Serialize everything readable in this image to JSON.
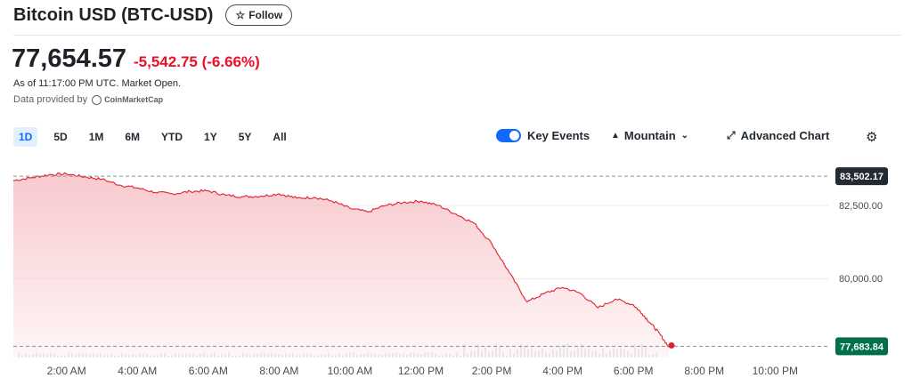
{
  "header": {
    "title": "Bitcoin USD (BTC-USD)",
    "follow_label": "Follow",
    "follow_icon": "star-icon"
  },
  "quote": {
    "price": "77,654.57",
    "change": "-5,542.75",
    "change_pct": "(-6.66%)",
    "as_of": "As of 11:17:00 PM UTC. Market Open.",
    "provider_prefix": "Data provided by",
    "provider_name": "CoinMarketCap"
  },
  "ranges": [
    "1D",
    "5D",
    "1M",
    "6M",
    "YTD",
    "1Y",
    "5Y",
    "All"
  ],
  "active_range": "1D",
  "controls": {
    "key_events_label": "Key Events",
    "key_events_on": true,
    "chart_type_label": "Mountain",
    "advanced_chart_label": "Advanced Chart",
    "settings_icon": "gear-icon"
  },
  "colors": {
    "line": "#e0202e",
    "fill": "#f8c6cb",
    "accent": "#0f69ff",
    "negative": "#eb0f29",
    "prev_close_badge": "#232a31",
    "current_badge": "#00704a"
  },
  "chart_data": {
    "type": "area",
    "xlabel": "",
    "ylabel": "",
    "x_ticks": [
      "2:00 AM",
      "4:00 AM",
      "6:00 AM",
      "8:00 AM",
      "10:00 AM",
      "12:00 PM",
      "2:00 PM",
      "4:00 PM",
      "6:00 PM",
      "8:00 PM",
      "10:00 PM"
    ],
    "x_tick_hours": [
      2,
      4,
      6,
      8,
      10,
      12,
      14,
      16,
      18,
      20,
      22
    ],
    "x_range_hours": [
      0.5,
      23.5
    ],
    "y_ticks": [
      "82,500.00",
      "80,000.00"
    ],
    "y_tick_values": [
      82500,
      80000
    ],
    "ylim": [
      77300,
      83900
    ],
    "reference_lines": [
      {
        "label": "83,502.17",
        "value": 83502.17,
        "style": "dashed"
      },
      {
        "label": "77,683.84",
        "value": 77683.84,
        "style": "dashed"
      }
    ],
    "x_hours": [
      0.5,
      1.0,
      1.5,
      2.0,
      2.5,
      3.0,
      3.5,
      4.0,
      4.5,
      5.0,
      5.5,
      6.0,
      6.5,
      7.0,
      7.5,
      8.0,
      8.5,
      9.0,
      9.5,
      10.0,
      10.5,
      11.0,
      11.5,
      12.0,
      12.5,
      13.0,
      13.5,
      14.0,
      14.5,
      15.0,
      15.5,
      16.0,
      16.5,
      17.0,
      17.5,
      18.0,
      18.25,
      18.5,
      18.75,
      19.0
    ],
    "values": [
      83350,
      83450,
      83550,
      83580,
      83480,
      83400,
      83200,
      83100,
      82950,
      82900,
      82980,
      83000,
      82850,
      82800,
      82820,
      82900,
      82750,
      82780,
      82650,
      82400,
      82280,
      82500,
      82600,
      82650,
      82500,
      82200,
      81900,
      81200,
      80200,
      79200,
      79500,
      79700,
      79500,
      79000,
      79300,
      79100,
      78800,
      78450,
      78100,
      77654.57
    ],
    "volume_hint": "low bars along bottom"
  }
}
